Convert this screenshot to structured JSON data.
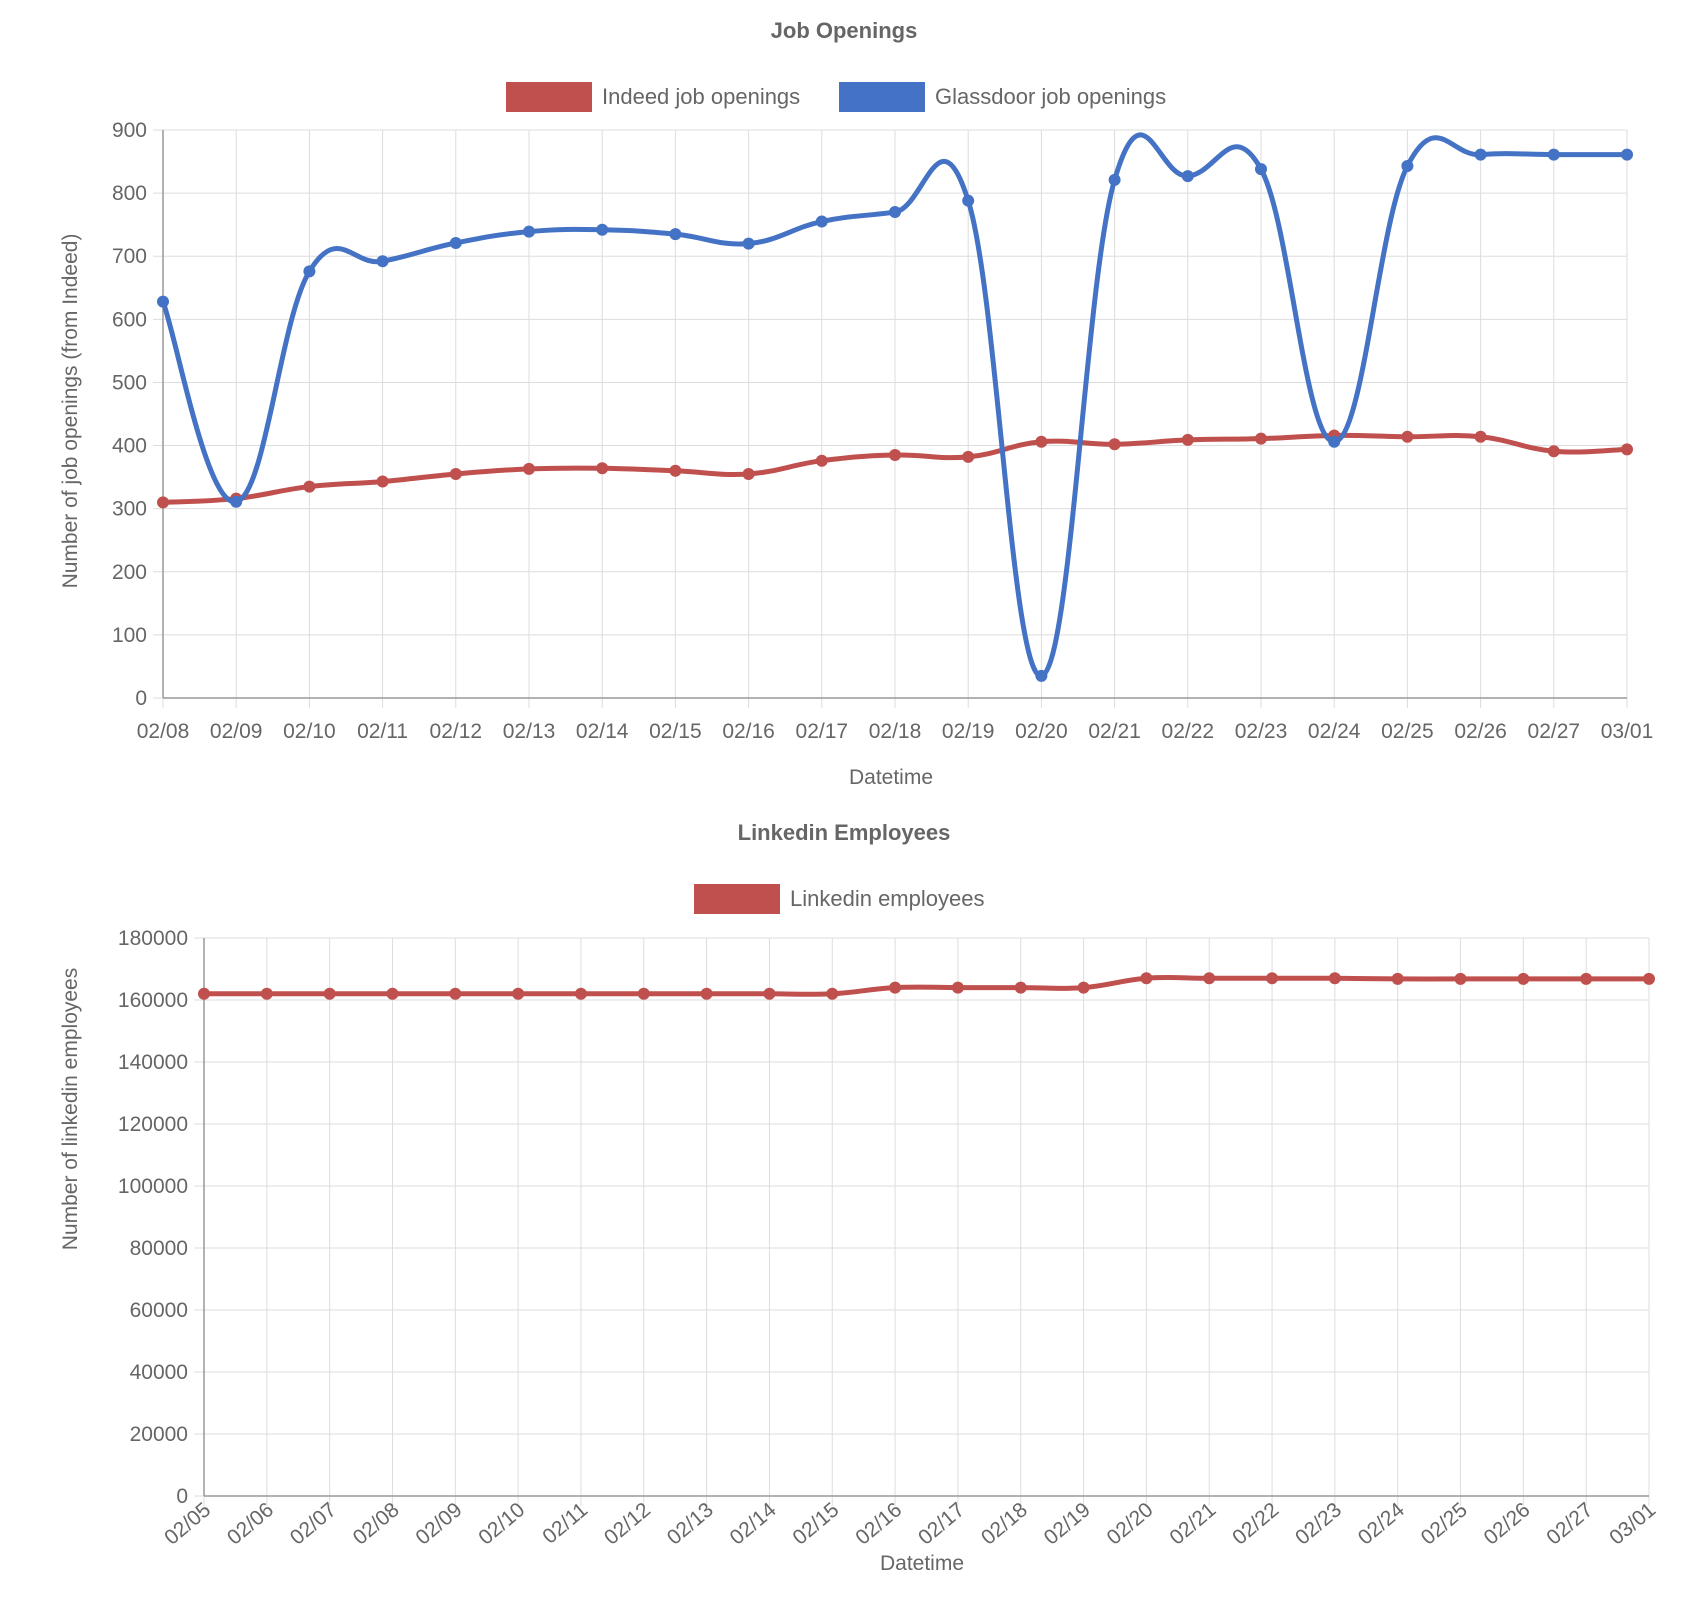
{
  "charts": {
    "job": {
      "title": "Job Openings",
      "legend": [
        "Indeed job openings",
        "Glassdoor job openings"
      ],
      "xlabel": "Datetime",
      "ylabel": "Number of job openings (from Indeed)"
    },
    "linkedin": {
      "title": "Linkedin Employees",
      "legend": [
        "Linkedin employees"
      ],
      "xlabel": "Datetime",
      "ylabel": "Number of linkedin employees"
    }
  },
  "chart_data": [
    {
      "type": "line",
      "title": "Job Openings",
      "xlabel": "Datetime",
      "ylabel": "Number of job openings (from Indeed)",
      "categories": [
        "02/08",
        "02/09",
        "02/10",
        "02/11",
        "02/12",
        "02/13",
        "02/14",
        "02/15",
        "02/16",
        "02/17",
        "02/18",
        "02/19",
        "02/20",
        "02/21",
        "02/22",
        "02/23",
        "02/24",
        "02/25",
        "02/26",
        "02/27",
        "03/01"
      ],
      "ylim": [
        0,
        900
      ],
      "yticks": [
        0,
        100,
        200,
        300,
        400,
        500,
        600,
        700,
        800,
        900
      ],
      "legend_position": "top",
      "grid": true,
      "series": [
        {
          "name": "Indeed job openings",
          "color": "#c0504d",
          "values": [
            310,
            316,
            335,
            343,
            355,
            363,
            364,
            360,
            355,
            376,
            385,
            382,
            406,
            402,
            409,
            411,
            416,
            414,
            414,
            391,
            394
          ]
        },
        {
          "name": "Glassdoor job openings",
          "color": "#4472c4",
          "values": [
            628,
            311,
            676,
            692,
            721,
            739,
            742,
            735,
            720,
            755,
            770,
            788,
            35,
            821,
            827,
            838,
            406,
            843,
            861,
            861,
            861
          ]
        }
      ]
    },
    {
      "type": "line",
      "title": "Linkedin Employees",
      "xlabel": "Datetime",
      "ylabel": "Number of linkedin employees",
      "categories": [
        "02/05",
        "02/06",
        "02/07",
        "02/08",
        "02/09",
        "02/10",
        "02/11",
        "02/12",
        "02/13",
        "02/14",
        "02/15",
        "02/16",
        "02/17",
        "02/18",
        "02/19",
        "02/20",
        "02/21",
        "02/22",
        "02/23",
        "02/24",
        "02/25",
        "02/26",
        "02/27",
        "03/01"
      ],
      "ylim": [
        0,
        180000
      ],
      "yticks": [
        0,
        20000,
        40000,
        60000,
        80000,
        100000,
        120000,
        140000,
        160000,
        180000
      ],
      "legend_position": "top",
      "grid": true,
      "series": [
        {
          "name": "Linkedin employees",
          "color": "#c0504d",
          "values": [
            162000,
            162000,
            162000,
            162000,
            162000,
            162000,
            162000,
            162000,
            162000,
            162000,
            162000,
            164000,
            164000,
            164000,
            164000,
            167000,
            167000,
            167000,
            167000,
            166800,
            166800,
            166800,
            166800,
            166800
          ]
        }
      ]
    }
  ]
}
